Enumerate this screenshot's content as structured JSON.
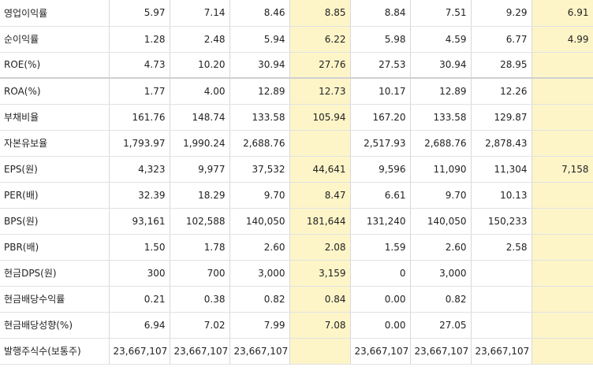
{
  "rows": [
    {
      "label": "영업이익률",
      "values": [
        "5.97",
        "7.14",
        "8.46",
        "8.85",
        "8.84",
        "7.51",
        "9.29",
        "6.91"
      ]
    },
    {
      "label": "순이익률",
      "values": [
        "1.28",
        "2.48",
        "5.94",
        "6.22",
        "5.98",
        "4.59",
        "6.77",
        "4.99"
      ]
    },
    {
      "label": "ROE(%)",
      "values": [
        "4.73",
        "10.20",
        "30.94",
        "27.76",
        "27.53",
        "30.94",
        "28.95",
        ""
      ]
    },
    {
      "label": "ROA(%)",
      "values": [
        "1.77",
        "4.00",
        "12.89",
        "12.73",
        "10.17",
        "12.89",
        "12.26",
        ""
      ]
    },
    {
      "label": "부채비율",
      "values": [
        "161.76",
        "148.74",
        "133.58",
        "105.94",
        "167.20",
        "133.58",
        "129.87",
        ""
      ]
    },
    {
      "label": "자본유보율",
      "values": [
        "1,793.97",
        "1,990.24",
        "2,688.76",
        "",
        "2,517.93",
        "2,688.76",
        "2,878.43",
        ""
      ]
    },
    {
      "label": "EPS(원)",
      "values": [
        "4,323",
        "9,977",
        "37,532",
        "44,641",
        "9,596",
        "11,090",
        "11,304",
        "7,158"
      ]
    },
    {
      "label": "PER(배)",
      "values": [
        "32.39",
        "18.29",
        "9.70",
        "8.47",
        "6.61",
        "9.70",
        "10.13",
        ""
      ]
    },
    {
      "label": "BPS(원)",
      "values": [
        "93,161",
        "102,588",
        "140,050",
        "181,644",
        "131,240",
        "140,050",
        "150,233",
        ""
      ]
    },
    {
      "label": "PBR(배)",
      "values": [
        "1.50",
        "1.78",
        "2.60",
        "2.08",
        "1.59",
        "2.60",
        "2.58",
        ""
      ]
    },
    {
      "label": "현금DPS(원)",
      "values": [
        "300",
        "700",
        "3,000",
        "3,159",
        "0",
        "3,000",
        "",
        ""
      ]
    },
    {
      "label": "현금배당수익률",
      "values": [
        "0.21",
        "0.38",
        "0.82",
        "0.84",
        "0.00",
        "0.82",
        "",
        ""
      ]
    },
    {
      "label": "현금배당성향(%)",
      "values": [
        "6.94",
        "7.02",
        "7.99",
        "7.08",
        "0.00",
        "27.05",
        "",
        ""
      ]
    },
    {
      "label": "발행주식수(보통주)",
      "values": [
        "23,667,107",
        "23,667,107",
        "23,667,107",
        "",
        "23,667,107",
        "23,667,107",
        "23,667,107",
        ""
      ]
    }
  ],
  "colors": {
    "highlight": "#fdf5c8"
  }
}
